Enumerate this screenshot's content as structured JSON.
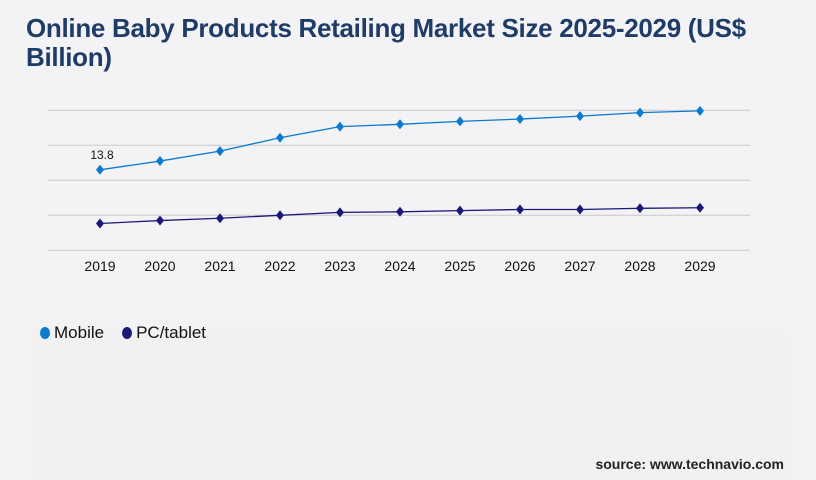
{
  "title": "Online Baby Products Retailing Market Size 2025-2029 (US$ Billion)",
  "source": "source: www.technavio.com",
  "chart_data": {
    "type": "line",
    "title": "Online Baby Products Retailing Market Size 2025-2029 (US$ Billion)",
    "categories": [
      "2019",
      "2020",
      "2021",
      "2022",
      "2023",
      "2024",
      "2025",
      "2026",
      "2027",
      "2028",
      "2029"
    ],
    "series": [
      {
        "name": "Mobile",
        "color": "#0a7ad0",
        "values": [
          13.8,
          15.3,
          17.0,
          19.3,
          21.2,
          21.6,
          22.1,
          22.5,
          23.0,
          23.6,
          23.9
        ]
      },
      {
        "name": "PC/tablet",
        "color": "#1c1878",
        "values": [
          4.6,
          5.1,
          5.5,
          6.0,
          6.5,
          6.6,
          6.8,
          7.0,
          7.0,
          7.2,
          7.3
        ]
      }
    ],
    "data_labels": [
      {
        "series": "Mobile",
        "category": "2019",
        "text": "13.8"
      }
    ],
    "ylim": [
      0,
      24
    ],
    "y_gridlines": [
      0,
      6,
      12,
      18,
      24
    ],
    "grid": true,
    "y_tick_labels_shown": false,
    "legend_position": "bottom-left",
    "xlabel": "",
    "ylabel": ""
  }
}
